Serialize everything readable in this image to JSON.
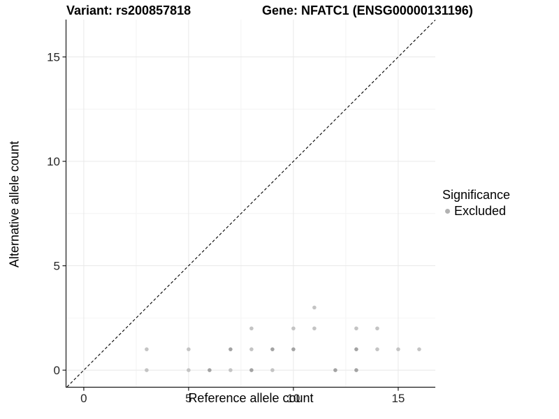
{
  "chart_data": {
    "type": "scatter",
    "titles": {
      "left": "Variant: rs200857818",
      "right": "Gene: NFATC1 (ENSG00000131196)"
    },
    "xlabel": "Reference allele count",
    "ylabel": "Alternative allele count",
    "xlim": [
      -0.83,
      16.77
    ],
    "ylim": [
      -0.8,
      16.79
    ],
    "x_ticks": [
      0,
      5,
      10,
      15
    ],
    "y_ticks": [
      0,
      5,
      10,
      15
    ],
    "x_minor_gridlines": [
      2.5,
      7.5,
      12.5
    ],
    "y_minor_gridlines": [
      2.5,
      7.5,
      12.5
    ],
    "grid": true,
    "identity_line": {
      "type": "dashed",
      "slope": 1,
      "intercept": 0
    },
    "legend": {
      "position": "right",
      "title": "Significance",
      "items": [
        {
          "label": "Excluded",
          "color": "#b2b2b2"
        }
      ]
    },
    "series": [
      {
        "name": "Excluded",
        "points": [
          {
            "x": 3,
            "y": 0,
            "overlap": 1
          },
          {
            "x": 5,
            "y": 0,
            "overlap": 1
          },
          {
            "x": 6,
            "y": 0,
            "overlap": 2
          },
          {
            "x": 7,
            "y": 0,
            "overlap": 1
          },
          {
            "x": 8,
            "y": 0,
            "overlap": 2
          },
          {
            "x": 9,
            "y": 0,
            "overlap": 1
          },
          {
            "x": 12,
            "y": 0,
            "overlap": 2
          },
          {
            "x": 13,
            "y": 0,
            "overlap": 2
          },
          {
            "x": 3,
            "y": 1,
            "overlap": 1
          },
          {
            "x": 5,
            "y": 1,
            "overlap": 1
          },
          {
            "x": 7,
            "y": 1,
            "overlap": 2
          },
          {
            "x": 8,
            "y": 1,
            "overlap": 1
          },
          {
            "x": 9,
            "y": 1,
            "overlap": 2
          },
          {
            "x": 10,
            "y": 1,
            "overlap": 2
          },
          {
            "x": 13,
            "y": 1,
            "overlap": 2
          },
          {
            "x": 14,
            "y": 1,
            "overlap": 1
          },
          {
            "x": 15,
            "y": 1,
            "overlap": 1
          },
          {
            "x": 16,
            "y": 1,
            "overlap": 1
          },
          {
            "x": 8,
            "y": 2,
            "overlap": 1
          },
          {
            "x": 10,
            "y": 2,
            "overlap": 1
          },
          {
            "x": 11,
            "y": 2,
            "overlap": 1
          },
          {
            "x": 13,
            "y": 2,
            "overlap": 1
          },
          {
            "x": 14,
            "y": 2,
            "overlap": 1
          },
          {
            "x": 11,
            "y": 3,
            "overlap": 1
          }
        ]
      }
    ],
    "colors": {
      "point_single": "#c4c4c4",
      "point_double": "#a3a3a3",
      "grid_major": "#e8e8e8",
      "grid_minor": "#f4f4f4",
      "axis_line": "#1a1a1a",
      "tick_text": "#262626",
      "identity_line": "#000000"
    }
  }
}
